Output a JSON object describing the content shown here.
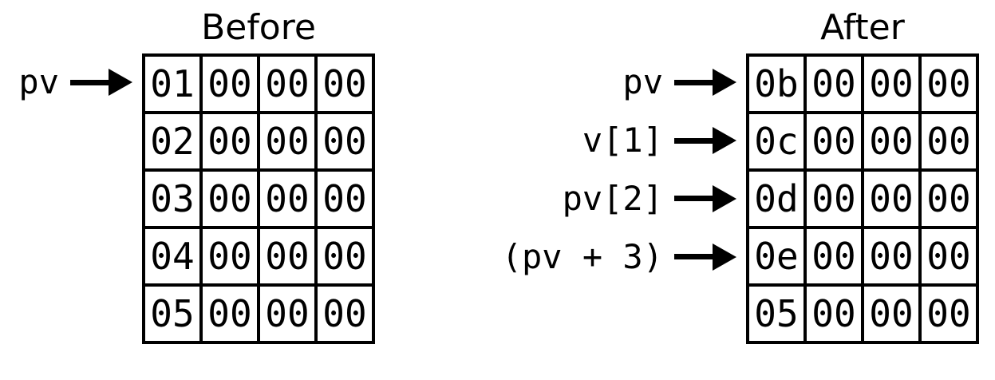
{
  "panels": {
    "before": {
      "title": "Before",
      "pointer_labels": [
        "pv"
      ],
      "rows": [
        [
          "01",
          "00",
          "00",
          "00"
        ],
        [
          "02",
          "00",
          "00",
          "00"
        ],
        [
          "03",
          "00",
          "00",
          "00"
        ],
        [
          "04",
          "00",
          "00",
          "00"
        ],
        [
          "05",
          "00",
          "00",
          "00"
        ]
      ]
    },
    "after": {
      "title": "After",
      "pointer_labels": [
        "pv",
        "v[1]",
        "pv[2]",
        "(pv + 3)"
      ],
      "rows": [
        [
          "0b",
          "00",
          "00",
          "00"
        ],
        [
          "0c",
          "00",
          "00",
          "00"
        ],
        [
          "0d",
          "00",
          "00",
          "00"
        ],
        [
          "0e",
          "00",
          "00",
          "00"
        ],
        [
          "05",
          "00",
          "00",
          "00"
        ]
      ]
    }
  },
  "colors": {
    "ink": "#000000",
    "background": "#ffffff"
  }
}
